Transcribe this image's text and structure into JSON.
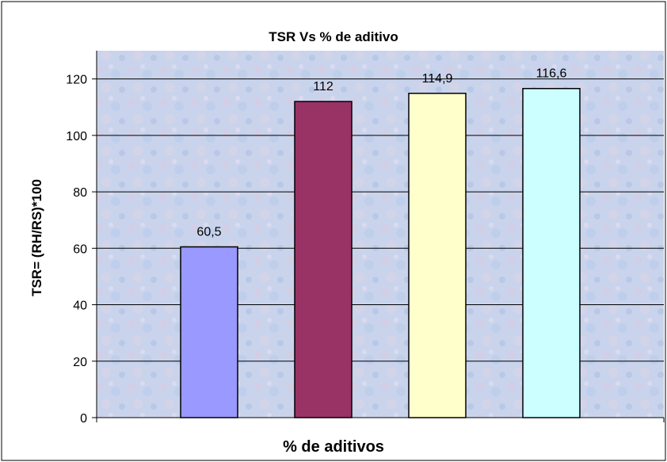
{
  "chart_data": {
    "type": "bar",
    "title": "TSR Vs % de aditivo",
    "xlabel": "% de aditivos",
    "ylabel": "TSR= (RH/RS)*100",
    "categories": [
      "",
      "",
      "",
      ""
    ],
    "values": [
      60.5,
      112,
      114.9,
      116.6
    ],
    "data_labels": [
      "60,5",
      "112",
      "114,9",
      "116,6"
    ],
    "bar_colors": [
      "#9999ff",
      "#993366",
      "#ffffcc",
      "#ccffff"
    ],
    "ylim": [
      0,
      130
    ],
    "yticks": [
      0,
      20,
      40,
      60,
      80,
      100,
      120
    ],
    "grid": true,
    "legend": "none",
    "plot_background": "textured light blue"
  }
}
